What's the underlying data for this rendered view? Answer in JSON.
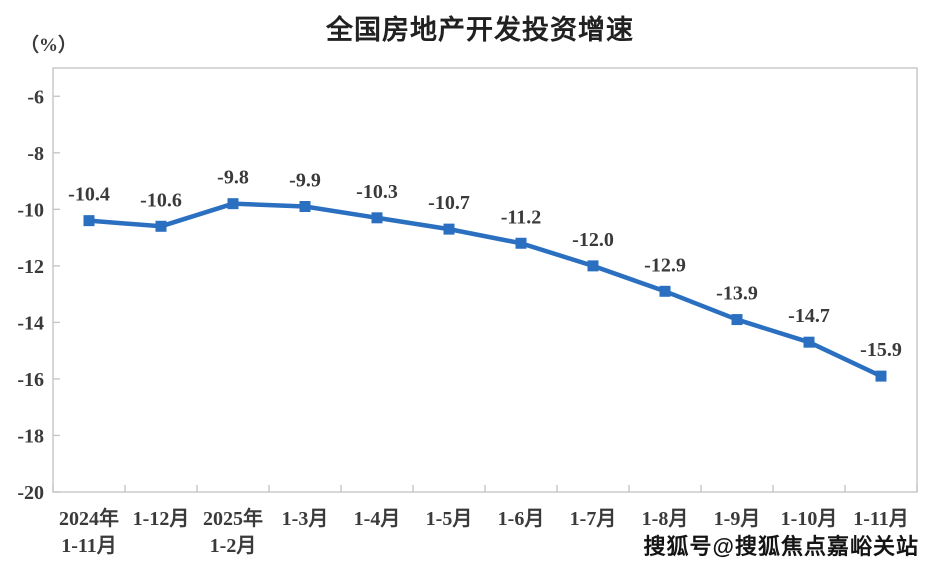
{
  "watermark": {
    "text": "搜狐号@搜狐焦点嘉峪关站"
  },
  "chart_data": {
    "type": "line",
    "title": "全国房地产开发投资增速",
    "y_unit_label": "（%）",
    "xlabel": "",
    "ylabel": "（%）",
    "categories": [
      "2024年\n1-11月",
      "1-12月",
      "2025年\n1-2月",
      "1-3月",
      "1-4月",
      "1-5月",
      "1-6月",
      "1-7月",
      "1-8月",
      "1-9月",
      "1-10月",
      "1-11月"
    ],
    "series": [
      {
        "name": "全国房地产开发投资增速",
        "values": [
          -10.4,
          -10.6,
          -9.8,
          -9.9,
          -10.3,
          -10.7,
          -11.2,
          -12.0,
          -12.9,
          -13.9,
          -14.7,
          -15.9
        ]
      }
    ],
    "data_labels": [
      "-10.4",
      "-10.6",
      "-9.8",
      "-9.9",
      "-10.3",
      "-10.7",
      "-11.2",
      "-12.0",
      "-12.9",
      "-13.9",
      "-14.7",
      "-15.9"
    ],
    "ylim": [
      -20,
      -5
    ],
    "y_ticks": [
      -6,
      -8,
      -10,
      -12,
      -14,
      -16,
      -18,
      -20
    ],
    "grid": false,
    "legend": "none",
    "marker": "square",
    "line_color": "#2B70C0",
    "label_color": "#3a3a3a",
    "axis_color": "#c6c6c6"
  }
}
